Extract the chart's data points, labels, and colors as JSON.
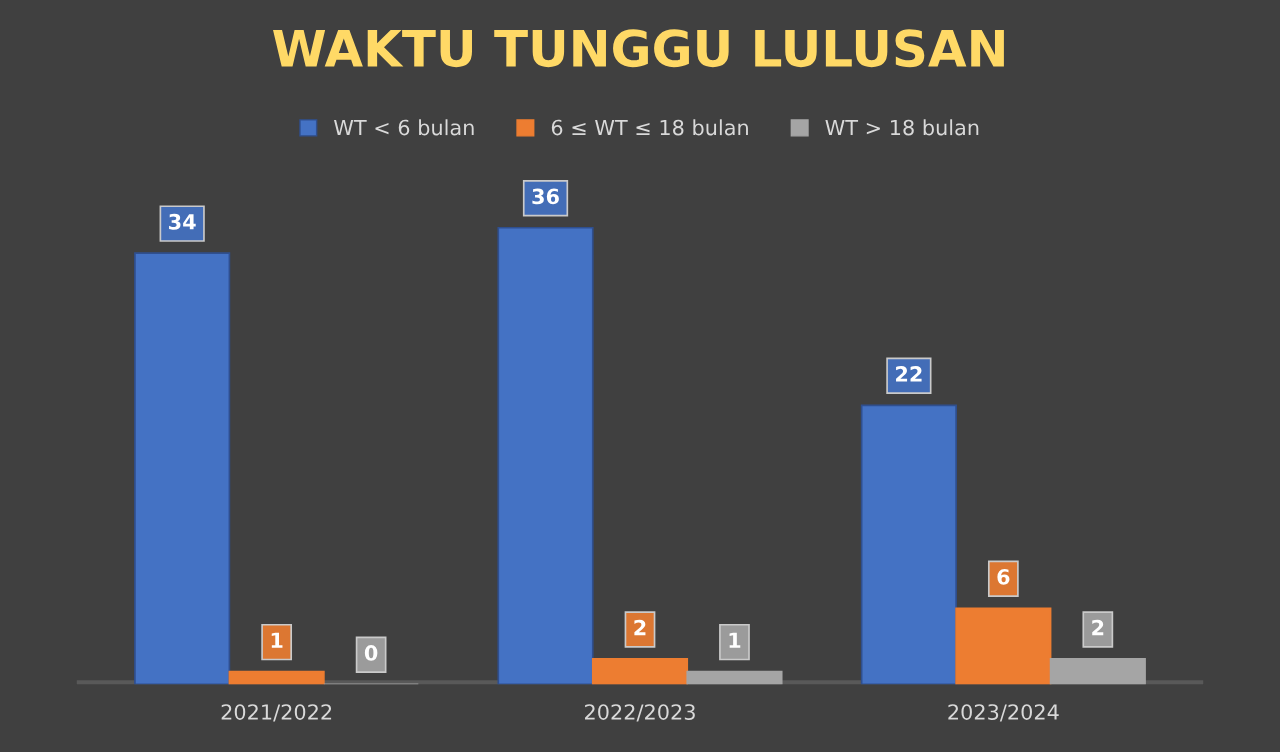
{
  "chart_data": {
    "type": "bar",
    "title": "WAKTU TUNGGU LULUSAN",
    "categories": [
      "2021/2022",
      "2022/2023",
      "2023/2024"
    ],
    "series": [
      {
        "name": "WT < 6 bulan",
        "color": "#4472c4",
        "values": [
          34,
          36,
          22
        ]
      },
      {
        "name": "6 ≤ WT ≤ 18 bulan",
        "color": "#ed7d31",
        "values": [
          1,
          2,
          6
        ]
      },
      {
        "name": "WT > 18 bulan",
        "color": "#a5a5a5",
        "values": [
          0,
          1,
          2
        ]
      }
    ],
    "data_labels": true,
    "grid": false,
    "legend": "top",
    "tick_labels": "x"
  }
}
